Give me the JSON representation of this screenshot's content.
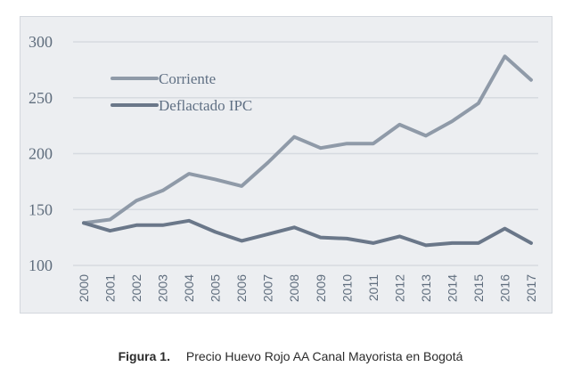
{
  "chart_data": {
    "type": "line",
    "x": [
      "2000",
      "2001",
      "2002",
      "2003",
      "2004",
      "2005",
      "2006",
      "2007",
      "2008",
      "2009",
      "2010",
      "2011",
      "2012",
      "2013",
      "2014",
      "2015",
      "2016",
      "2017"
    ],
    "series": [
      {
        "name": "Corriente",
        "color": "#8f9aa8",
        "values": [
          138,
          141,
          158,
          167,
          182,
          177,
          171,
          192,
          215,
          205,
          209,
          209,
          226,
          216,
          229,
          245,
          287,
          266
        ]
      },
      {
        "name": "Deflactado IPC",
        "color": "#6a7789",
        "values": [
          138,
          131,
          136,
          136,
          140,
          130,
          122,
          128,
          134,
          125,
          124,
          120,
          126,
          118,
          120,
          120,
          133,
          120
        ]
      }
    ],
    "yticks": [
      100,
      150,
      200,
      250,
      300
    ],
    "ylim": [
      100,
      300
    ],
    "grid": true,
    "legend": "top-left"
  },
  "caption": {
    "label": "Figura 1.",
    "text": "Precio Huevo Rojo AA Canal Mayorista en Bogotá"
  }
}
